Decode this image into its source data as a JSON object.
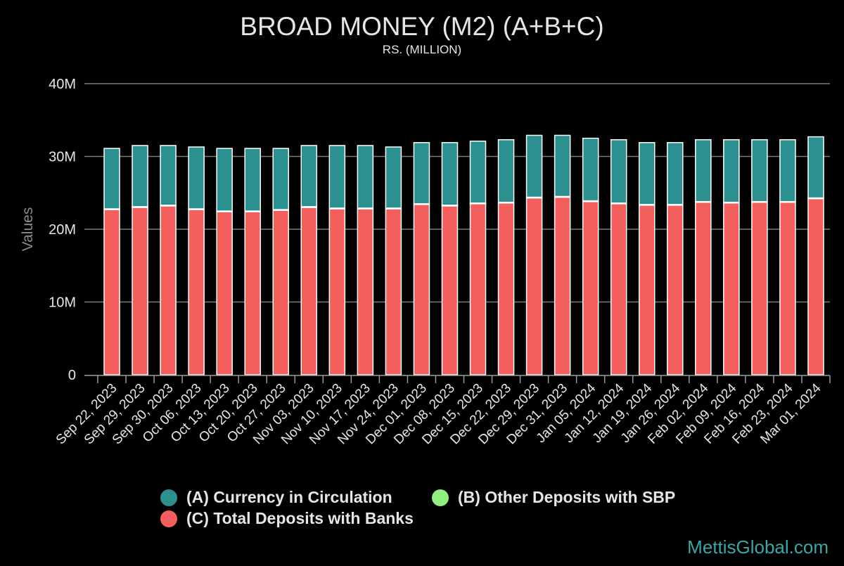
{
  "chart_data": {
    "type": "bar",
    "stacked": true,
    "title": "BROAD MONEY (M2) (A+B+C)",
    "subtitle": "RS. (MILLION)",
    "ylabel": "Values",
    "xlabel": "",
    "ylim": [
      0,
      40000000
    ],
    "yticks": [
      0,
      10000000,
      20000000,
      30000000,
      40000000
    ],
    "ytick_labels": [
      "0",
      "10M",
      "20M",
      "30M",
      "40M"
    ],
    "grid": true,
    "legend_position": "bottom",
    "categories": [
      "Sep 22, 2023",
      "Sep 29, 2023",
      "Sep 30, 2023",
      "Oct 06, 2023",
      "Oct 13, 2023",
      "Oct 20, 2023",
      "Oct 27, 2023",
      "Nov 03, 2023",
      "Nov 10, 2023",
      "Nov 17, 2023",
      "Nov 24, 2023",
      "Dec 01, 2023",
      "Dec 08, 2023",
      "Dec 15, 2023",
      "Dec 22, 2023",
      "Dec 29, 2023",
      "Dec 31, 2023",
      "Jan 05, 2024",
      "Jan 12, 2024",
      "Jan 19, 2024",
      "Jan 26, 2024",
      "Feb 02, 2024",
      "Feb 09, 2024",
      "Feb 16, 2024",
      "Feb 23, 2024",
      "Mar 01, 2024"
    ],
    "series": [
      {
        "name": "(C) Total Deposits with Banks",
        "color": "#f25f5c",
        "values": [
          22700000,
          23000000,
          23200000,
          22700000,
          22400000,
          22400000,
          22600000,
          23000000,
          22800000,
          22800000,
          22800000,
          23400000,
          23200000,
          23500000,
          23600000,
          24300000,
          24400000,
          23800000,
          23500000,
          23300000,
          23300000,
          23700000,
          23600000,
          23700000,
          23700000,
          24200000
        ]
      },
      {
        "name": "(B) Other Deposits with SBP",
        "color": "#90ee7e",
        "values": [
          100000,
          100000,
          100000,
          100000,
          100000,
          100000,
          100000,
          100000,
          100000,
          100000,
          100000,
          100000,
          100000,
          100000,
          100000,
          100000,
          100000,
          100000,
          100000,
          100000,
          100000,
          100000,
          100000,
          100000,
          100000,
          100000
        ]
      },
      {
        "name": "(A) Currency in Circulation",
        "color": "#2b908f",
        "values": [
          8300000,
          8400000,
          8200000,
          8500000,
          8600000,
          8600000,
          8400000,
          8400000,
          8600000,
          8600000,
          8400000,
          8400000,
          8600000,
          8500000,
          8600000,
          8500000,
          8400000,
          8600000,
          8700000,
          8500000,
          8500000,
          8500000,
          8600000,
          8500000,
          8500000,
          8400000
        ]
      }
    ]
  },
  "legend": {
    "items": [
      {
        "label": "(A) Currency in Circulation",
        "color": "#2b908f"
      },
      {
        "label": "(B) Other Deposits with SBP",
        "color": "#90ee7e"
      },
      {
        "label": "(C) Total Deposits with Banks",
        "color": "#f25f5c"
      }
    ]
  },
  "watermark": "MettisGlobal.com"
}
